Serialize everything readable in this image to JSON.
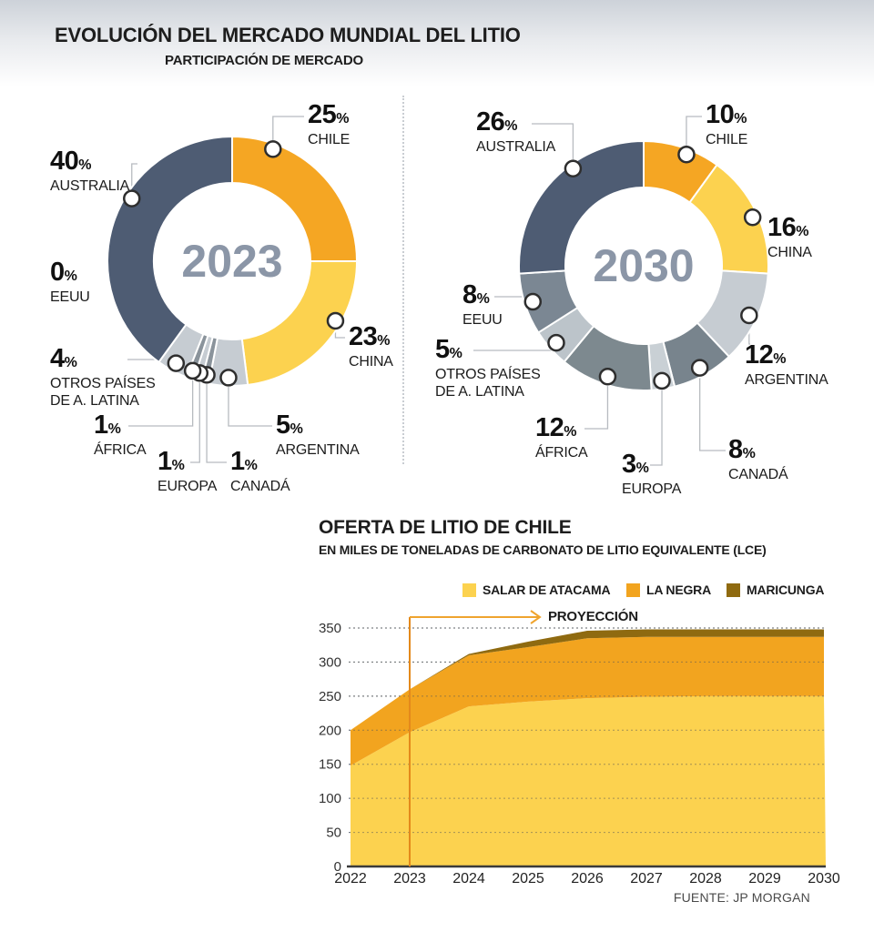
{
  "header": {
    "title": "EVOLUCIÓN DEL MERCADO MUNDIAL DEL LITIO",
    "subtitle": "PARTICIPACIÓN DE MERCADO"
  },
  "colors": {
    "orange": "#F5A623",
    "yellow": "#FCD24F",
    "navy": "#4E5C73",
    "light_gray": "#C6CCD2",
    "medium_gray": "#7D898F",
    "donut_year_text": "#8B96A7",
    "projection_line": "#E4891B",
    "projection_arrow": "#EFA42F"
  },
  "chart_data": [
    {
      "type": "pie",
      "title": "2023",
      "units": "%",
      "slices": [
        {
          "label": "CHILE",
          "value": 25,
          "color": "#F5A623"
        },
        {
          "label": "CHINA",
          "value": 23,
          "color": "#FCD24F"
        },
        {
          "label": "ARGENTINA",
          "value": 5,
          "color": "#C6CCD2"
        },
        {
          "label": "CANADÁ",
          "value": 1,
          "color": "#8A939B"
        },
        {
          "label": "EUROPA",
          "value": 1,
          "color": "#C6CCD2"
        },
        {
          "label": "ÁFRICA",
          "value": 1,
          "color": "#8A939B"
        },
        {
          "label": "OTROS PAÍSES\nDE A. LATINA",
          "value": 4,
          "color": "#C6CCD2"
        },
        {
          "label": "EEUU",
          "value": 0,
          "color": "#C6CCD2"
        },
        {
          "label": "AUSTRALIA",
          "value": 40,
          "color": "#4E5C73"
        }
      ]
    },
    {
      "type": "pie",
      "title": "2030",
      "units": "%",
      "slices": [
        {
          "label": "CHILE",
          "value": 10,
          "color": "#F5A623"
        },
        {
          "label": "CHINA",
          "value": 16,
          "color": "#FCD24F"
        },
        {
          "label": "ARGENTINA",
          "value": 12,
          "color": "#C6CCD2"
        },
        {
          "label": "CANADÁ",
          "value": 8,
          "color": "#78848D"
        },
        {
          "label": "EUROPA",
          "value": 3,
          "color": "#C9D0D5"
        },
        {
          "label": "ÁFRICA",
          "value": 12,
          "color": "#7D898F"
        },
        {
          "label": "OTROS PAÍSES\nDE A. LATINA",
          "value": 5,
          "color": "#BCC4CA"
        },
        {
          "label": "EEUU",
          "value": 8,
          "color": "#7B8793"
        },
        {
          "label": "AUSTRALIA",
          "value": 26,
          "color": "#4E5C73"
        }
      ]
    },
    {
      "type": "area",
      "title": "OFERTA DE LITIO DE CHILE",
      "subtitle": "EN MILES DE TONELADAS DE CARBONATO DE LITIO EQUIVALENTE (LCE)",
      "x": [
        2022,
        2023,
        2024,
        2025,
        2026,
        2027,
        2028,
        2029,
        2030
      ],
      "series": [
        {
          "name": "SALAR DE ATACAMA",
          "color": "#FCD24F",
          "values": [
            148,
            197,
            235,
            242,
            247,
            249,
            250,
            250,
            250
          ]
        },
        {
          "name": "LA NEGRA",
          "color": "#F2A41F",
          "values": [
            52,
            63,
            75,
            80,
            88,
            88,
            87,
            87,
            87
          ]
        },
        {
          "name": "MARICUNGA",
          "color": "#8F6A10",
          "values": [
            0,
            0,
            2,
            8,
            11,
            11,
            11,
            11,
            11
          ]
        }
      ],
      "stacked": true,
      "ylim": [
        0,
        350
      ],
      "yticks": [
        0,
        50,
        100,
        150,
        200,
        250,
        300,
        350
      ],
      "grid": "dotted-horizontal",
      "legend_position": "top",
      "projection_label": "PROYECCIÓN",
      "projection_start_x": 2023,
      "source": "FUENTE: JP MORGAN"
    }
  ]
}
